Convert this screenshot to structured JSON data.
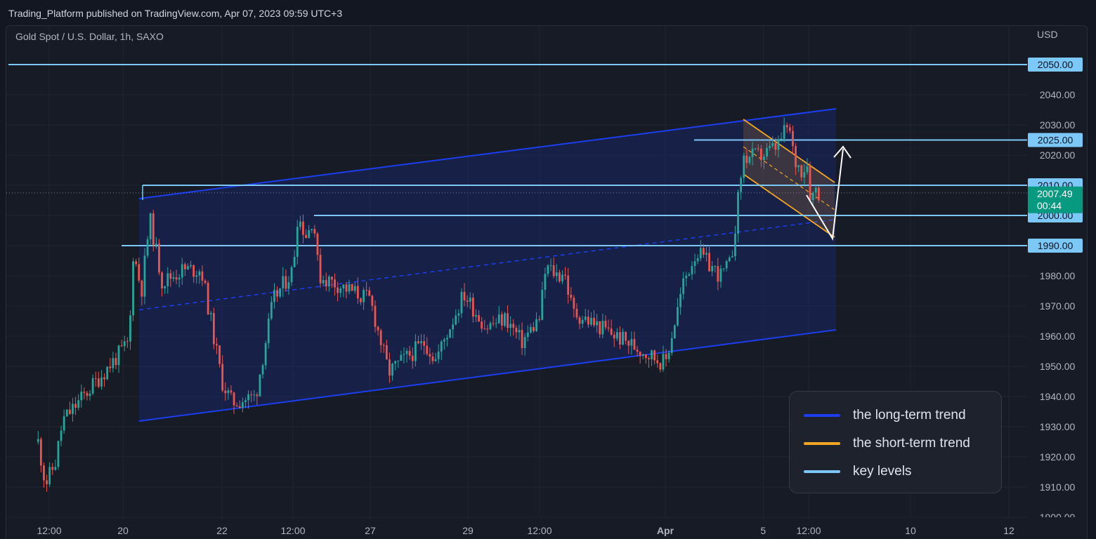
{
  "header": {
    "published": "Trading_Platform published on TradingView.com, Apr 07, 2023 09:59 UTC+3",
    "symbol": "Gold Spot / U.S. Dollar, 1h, SAXO",
    "currency": "USD"
  },
  "colors": {
    "background": "#131722",
    "panel": "#171b26",
    "grid": "#1f2430",
    "axis_text": "#b2b5be",
    "up_candle": "#26a69a",
    "down_candle": "#ef5350",
    "long_trend": "#1b3ff0",
    "short_trend": "#f5a623",
    "key_level": "#7cc8f8",
    "last_price_label": "#089981",
    "arrow": "#ffffff"
  },
  "legend": [
    {
      "label": "the long-term trend",
      "color": "#1b3ff0"
    },
    {
      "label": "the short-term trend",
      "color": "#f5a623"
    },
    {
      "label": "key levels",
      "color": "#7cc8f8"
    }
  ],
  "chart_data": {
    "type": "candlestick",
    "title": "Gold Spot / U.S. Dollar, 1h, SAXO",
    "ylabel": "USD",
    "ylim": [
      1900,
      2055
    ],
    "y_ticks": [
      1900,
      1910,
      1920,
      1930,
      1940,
      1950,
      1960,
      1970,
      1980,
      1990,
      2000,
      2010,
      2020,
      2030,
      2040,
      2050
    ],
    "y_tick_labels": [
      "1900.00",
      "1910.00",
      "1920.00",
      "1930.00",
      "1940.00",
      "1950.00",
      "1960.00",
      "1970.00",
      "1980.00",
      "1990.00",
      "2000.00",
      "2010.00",
      "2020.00",
      "2030.00",
      "2040.00",
      "2050.00"
    ],
    "x_tick_labels": [
      "12:00",
      "20",
      "22",
      "12:00",
      "27",
      "29",
      "12:00",
      "Apr",
      "5",
      "12:00",
      "10",
      "12"
    ],
    "x_tick_dates": [
      "Mar 17 12:00",
      "Mar 20",
      "Mar 22",
      "Mar 23 12:00",
      "Mar 27",
      "Mar 29",
      "Mar 30 12:00",
      "Apr 3",
      "Apr 5",
      "Apr 6 12:00",
      "Apr 10",
      "Apr 12"
    ],
    "grid": true,
    "key_levels": [
      {
        "label": "2050.00",
        "value": 2050
      },
      {
        "label": "2025.00",
        "value": 2025
      },
      {
        "label": "2010.00",
        "value": 2010
      },
      {
        "label": "2000.00",
        "value": 2000
      },
      {
        "label": "1990.00",
        "value": 1990
      }
    ],
    "last_price": {
      "value": 2007.49,
      "label": "2007.49",
      "countdown": "00:44"
    },
    "price_path": [
      {
        "t": "Mar 17 03:00",
        "price": 1925
      },
      {
        "t": "Mar 17 09:00",
        "price": 1911
      },
      {
        "t": "Mar 17 17:00",
        "price": 1918
      },
      {
        "t": "Mar 17 23:00",
        "price": 1932
      },
      {
        "t": "Mar 20 03:00",
        "price": 1958
      },
      {
        "t": "Mar 20 05:00",
        "price": 1988
      },
      {
        "t": "Mar 20 09:00",
        "price": 1975
      },
      {
        "t": "Mar 20 13:00",
        "price": 1999
      },
      {
        "t": "Mar 20 19:00",
        "price": 1978
      },
      {
        "t": "Mar 21 05:00",
        "price": 1982
      },
      {
        "t": "Mar 21 14:00",
        "price": 1982
      },
      {
        "t": "Mar 22 00:00",
        "price": 1945
      },
      {
        "t": "Mar 22 05:00",
        "price": 1938
      },
      {
        "t": "Mar 22 17:00",
        "price": 1940
      },
      {
        "t": "Mar 23 02:00",
        "price": 1972
      },
      {
        "t": "Mar 23 12:00",
        "price": 1982
      },
      {
        "t": "Mar 23 17:00",
        "price": 2000
      },
      {
        "t": "Mar 24 03:00",
        "price": 1993
      },
      {
        "t": "Mar 24 10:00",
        "price": 2000
      },
      {
        "t": "Mar 24 16:00",
        "price": 1980
      },
      {
        "t": "Mar 27 00:00",
        "price": 1972
      },
      {
        "t": "Mar 27 09:00",
        "price": 1948
      },
      {
        "t": "Mar 28 03:00",
        "price": 1958
      },
      {
        "t": "Mar 28 08:00",
        "price": 1952
      },
      {
        "t": "Mar 28 22:00",
        "price": 1974
      },
      {
        "t": "Mar 29 09:00",
        "price": 1963
      },
      {
        "t": "Mar 29 19:00",
        "price": 1966
      },
      {
        "t": "Mar 30 03:00",
        "price": 1958
      },
      {
        "t": "Mar 30 12:00",
        "price": 1966
      },
      {
        "t": "Mar 30 17:00",
        "price": 1983
      },
      {
        "t": "Mar 31 03:00",
        "price": 1980
      },
      {
        "t": "Mar 31 07:00",
        "price": 1982
      },
      {
        "t": "Mar 31 14:00",
        "price": 1968
      },
      {
        "t": "Apr 3 00:00",
        "price": 1951
      },
      {
        "t": "Apr 3 09:00",
        "price": 1978
      },
      {
        "t": "Apr 3 15:00",
        "price": 1988
      },
      {
        "t": "Apr 4 03:00",
        "price": 1980
      },
      {
        "t": "Apr 4 08:00",
        "price": 1984
      },
      {
        "t": "Apr 4 14:00",
        "price": 2019
      },
      {
        "t": "Apr 5 00:00",
        "price": 2020
      },
      {
        "t": "Apr 5 07:00",
        "price": 2023
      },
      {
        "t": "Apr 5 13:00",
        "price": 2030
      },
      {
        "t": "Apr 5 20:00",
        "price": 2018
      },
      {
        "t": "Apr 6 05:00",
        "price": 2015
      },
      {
        "t": "Apr 6 10:00",
        "price": 2018
      },
      {
        "t": "Apr 6 15:00",
        "price": 2004
      },
      {
        "t": "Apr 6 19:00",
        "price": 2010
      },
      {
        "t": "Apr 7 00:00",
        "price": 2007.49
      }
    ]
  }
}
